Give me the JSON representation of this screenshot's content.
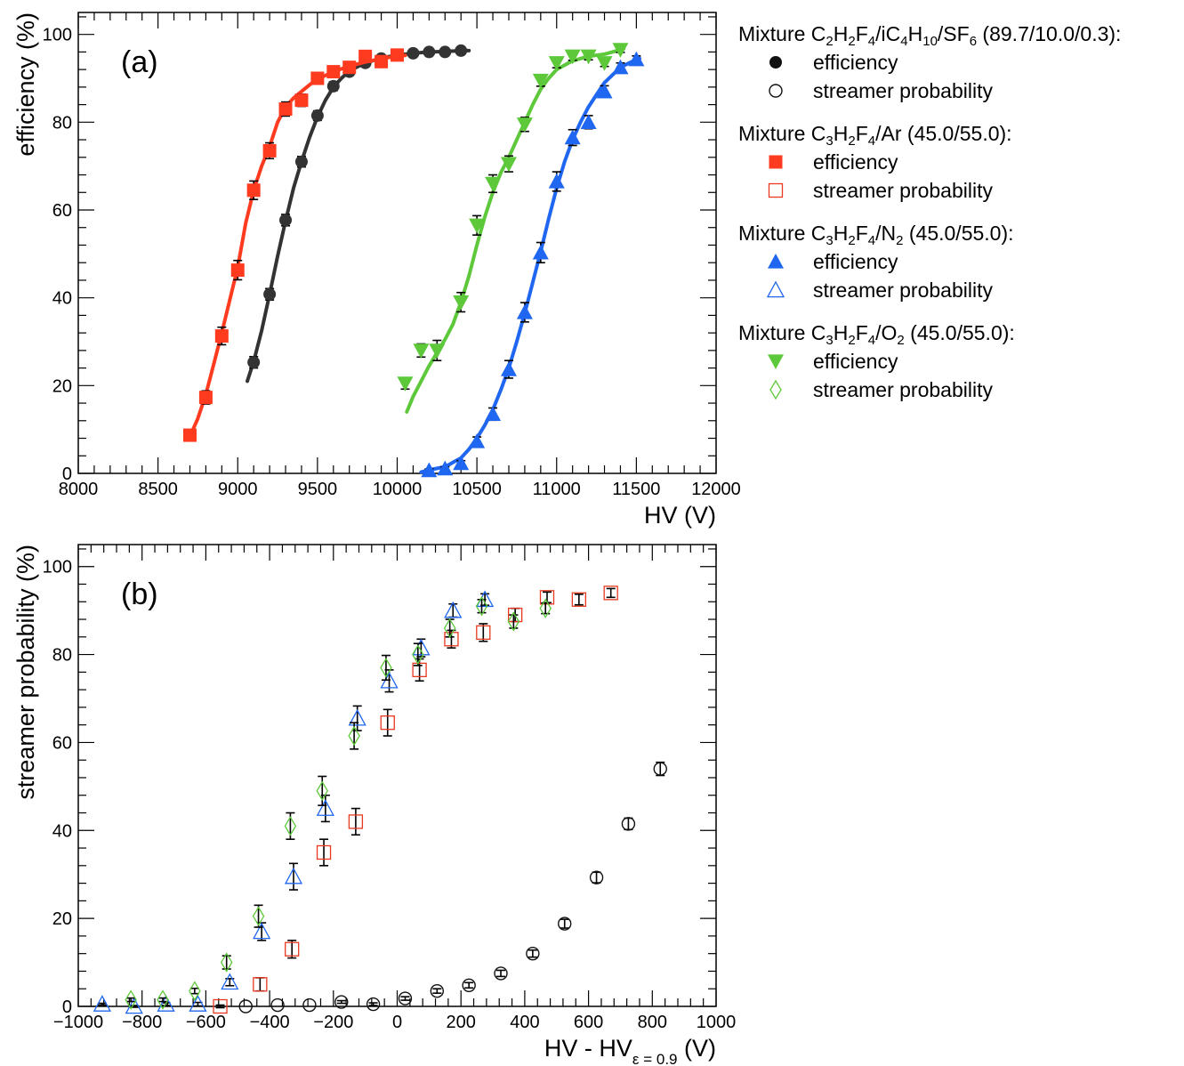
{
  "chart_data": [
    {
      "type": "scatter",
      "panel_label": "(a)",
      "xlabel": "HV (V)",
      "ylabel": "efficiency (%)",
      "xlim": [
        8000,
        12000
      ],
      "ylim": [
        0,
        105
      ],
      "xticks": [
        8000,
        8500,
        9000,
        9500,
        10000,
        10500,
        11000,
        11500,
        12000
      ],
      "yticks": [
        0,
        20,
        40,
        60,
        80,
        100
      ],
      "series": [
        {
          "name": "C2H2F4/iC4H10/SF6 efficiency",
          "color": "#333333",
          "marker": "circle-filled",
          "x": [
            9100,
            9200,
            9300,
            9400,
            9500,
            9600,
            9700,
            9800,
            9900,
            10000,
            10100,
            10200,
            10300,
            10400
          ],
          "y": [
            25.3,
            40.8,
            57.7,
            71,
            81.5,
            88.2,
            91.5,
            93.5,
            94.5,
            95.3,
            95.7,
            96,
            96,
            96.3
          ],
          "err": [
            1.3,
            1.3,
            1.3,
            1.2,
            1.1,
            1.0,
            0.9,
            0.8,
            0.7,
            0.6,
            0.6,
            0.5,
            0.5,
            0.5
          ],
          "fit": [
            [
              9060,
              21
            ],
            [
              9100,
              25.5
            ],
            [
              9150,
              32.5
            ],
            [
              9200,
              40.8
            ],
            [
              9250,
              49.5
            ],
            [
              9300,
              57.5
            ],
            [
              9350,
              65
            ],
            [
              9400,
              71
            ],
            [
              9450,
              76.5
            ],
            [
              9500,
              81.2
            ],
            [
              9550,
              85
            ],
            [
              9600,
              88
            ],
            [
              9650,
              90
            ],
            [
              9700,
              91.7
            ],
            [
              9800,
              93.5
            ],
            [
              9900,
              94.6
            ],
            [
              10000,
              95.3
            ],
            [
              10100,
              95.7
            ],
            [
              10200,
              96
            ],
            [
              10300,
              96.1
            ],
            [
              10400,
              96.3
            ],
            [
              10450,
              96.3
            ]
          ]
        },
        {
          "name": "C3H2F4/Ar efficiency",
          "color": "#ff3b1f",
          "marker": "square-filled",
          "x": [
            8700,
            8800,
            8900,
            9000,
            9100,
            9200,
            9300,
            9400,
            9500,
            9600,
            9700,
            9800,
            9900,
            10000
          ],
          "y": [
            8.7,
            17.3,
            31.3,
            46.3,
            64.5,
            73.5,
            83,
            85,
            90,
            91.5,
            92.5,
            95,
            93.8,
            95.3
          ],
          "err": [
            1.2,
            1.5,
            2.0,
            2.2,
            2.1,
            1.8,
            1.6,
            1.4,
            1.2,
            1.0,
            0.9,
            0.8,
            0.7,
            0.6
          ],
          "fit": [
            [
              8695,
              8
            ],
            [
              8750,
              12.5
            ],
            [
              8800,
              18
            ],
            [
              8850,
              25
            ],
            [
              8900,
              32
            ],
            [
              8950,
              39.5
            ],
            [
              9000,
              47
            ],
            [
              9050,
              57
            ],
            [
              9100,
              64.5
            ],
            [
              9150,
              70
            ],
            [
              9200,
              74.5
            ],
            [
              9250,
              80
            ],
            [
              9300,
              83.5
            ],
            [
              9350,
              85.5
            ],
            [
              9400,
              87
            ],
            [
              9450,
              88.5
            ],
            [
              9500,
              89.8
            ],
            [
              9600,
              91.5
            ],
            [
              9700,
              92.8
            ],
            [
              9800,
              93.7
            ],
            [
              9900,
              94.5
            ],
            [
              10000,
              95
            ],
            [
              10050,
              95.2
            ]
          ]
        },
        {
          "name": "C3H2F4/N2 efficiency",
          "color": "#1f66f0",
          "marker": "triangle-up-filled",
          "x": [
            10200,
            10300,
            10400,
            10500,
            10600,
            10700,
            10800,
            10900,
            11000,
            11100,
            11200,
            11300,
            11400,
            11500
          ],
          "y": [
            0.7,
            1.1,
            2.3,
            7.3,
            13.5,
            23.7,
            36.7,
            50.3,
            66.5,
            76.5,
            80,
            87,
            92.5,
            94.3
          ],
          "err": [
            0.3,
            0.4,
            0.6,
            1.0,
            1.4,
            2.0,
            2.2,
            2.3,
            2.2,
            1.8,
            1.5,
            1.3,
            1.0,
            0.8
          ],
          "fit": [
            [
              10150,
              0.3
            ],
            [
              10200,
              0.8
            ],
            [
              10300,
              1.5
            ],
            [
              10400,
              3.5
            ],
            [
              10450,
              5.5
            ],
            [
              10500,
              8
            ],
            [
              10550,
              11
            ],
            [
              10600,
              14.5
            ],
            [
              10650,
              19
            ],
            [
              10700,
              24
            ],
            [
              10750,
              30
            ],
            [
              10800,
              36.5
            ],
            [
              10850,
              43.5
            ],
            [
              10900,
              50.5
            ],
            [
              10950,
              58
            ],
            [
              11000,
              65
            ],
            [
              11050,
              71
            ],
            [
              11100,
              76
            ],
            [
              11150,
              80
            ],
            [
              11200,
              83.5
            ],
            [
              11300,
              89
            ],
            [
              11400,
              92.5
            ],
            [
              11500,
              94.3
            ],
            [
              11520,
              94.5
            ]
          ]
        },
        {
          "name": "C3H2F4/O2 efficiency",
          "color": "#5dc93a",
          "marker": "triangle-down-filled",
          "x": [
            10050,
            10150,
            10250,
            10400,
            10500,
            10600,
            10700,
            10800,
            10900,
            11000,
            11100,
            11200,
            11300,
            11400
          ],
          "y": [
            20.5,
            28,
            28,
            39,
            56.5,
            66,
            70.5,
            79.5,
            89.5,
            93.5,
            95,
            95,
            93.5,
            96.5
          ],
          "err": [
            1.3,
            1.5,
            2.3,
            2.2,
            2.2,
            2.0,
            1.8,
            1.6,
            1.3,
            1.1,
            0.9,
            0.8,
            0.8,
            0.6
          ],
          "fit": [
            [
              10060,
              14
            ],
            [
              10100,
              17.5
            ],
            [
              10150,
              21
            ],
            [
              10200,
              24.5
            ],
            [
              10250,
              27.5
            ],
            [
              10300,
              30.5
            ],
            [
              10350,
              34
            ],
            [
              10400,
              39
            ],
            [
              10450,
              45
            ],
            [
              10500,
              52
            ],
            [
              10550,
              58.5
            ],
            [
              10600,
              64
            ],
            [
              10650,
              68.5
            ],
            [
              10700,
              72
            ],
            [
              10750,
              76
            ],
            [
              10800,
              80
            ],
            [
              10850,
              84
            ],
            [
              10900,
              87.5
            ],
            [
              10950,
              90
            ],
            [
              11000,
              92
            ],
            [
              11100,
              94
            ],
            [
              11200,
              95
            ],
            [
              11300,
              95.5
            ],
            [
              11400,
              96.5
            ],
            [
              11420,
              96.7
            ]
          ]
        }
      ]
    },
    {
      "type": "scatter",
      "panel_label": "(b)",
      "xlabel": "HV - HV",
      "xlabel_sub": "ε = 0.9",
      "xlabel_unit": " (V)",
      "ylabel": "streamer probability (%)",
      "xlim": [
        -1000,
        1000
      ],
      "ylim": [
        0,
        105
      ],
      "xticks": [
        -1000,
        -800,
        -600,
        -400,
        -200,
        0,
        200,
        400,
        600,
        800,
        1000
      ],
      "xtick_labels": [
        "−1000",
        "−800",
        "−600",
        "−400",
        "−200",
        "0",
        "200",
        "400",
        "600",
        "800",
        "1000"
      ],
      "yticks": [
        0,
        20,
        40,
        60,
        80,
        100
      ],
      "series": [
        {
          "name": "C2H2F4/iC4H10/SF6 streamer probability",
          "color": "#111111",
          "marker": "circle-open",
          "x": [
            -475,
            -375,
            -275,
            -175,
            -75,
            25,
            125,
            225,
            325,
            425,
            525,
            625,
            725,
            825
          ],
          "y": [
            0,
            0.3,
            0.3,
            1,
            0.5,
            1.8,
            3.5,
            4.8,
            7.5,
            12,
            18.8,
            29.3,
            41.5,
            54
          ],
          "err": [
            0,
            0,
            0,
            0.3,
            0.3,
            0.4,
            0.5,
            0.6,
            0.7,
            0.8,
            1.0,
            1.2,
            1.3,
            1.5
          ]
        },
        {
          "name": "C3H2F4/Ar streamer probability",
          "color": "#e8381f",
          "marker": "square-open",
          "x": [
            -555,
            -430,
            -330,
            -230,
            -130,
            -30,
            70,
            170,
            270,
            370,
            470,
            570,
            670
          ],
          "y": [
            0,
            5,
            13,
            35,
            42,
            64.5,
            76.5,
            83.5,
            85,
            89,
            93,
            92.5,
            94
          ],
          "err": [
            0.3,
            1.5,
            2.0,
            3.0,
            3.0,
            3.0,
            2.5,
            2.0,
            2.0,
            1.5,
            1.2,
            1.2,
            1.0
          ]
        },
        {
          "name": "C3H2F4/N2 streamer probability",
          "color": "#1f66f0",
          "marker": "triangle-up-open",
          "x": [
            -925,
            -825,
            -725,
            -625,
            -525,
            -425,
            -325,
            -225,
            -125,
            -25,
            75,
            175,
            275
          ],
          "y": [
            0.5,
            0,
            0.5,
            0.5,
            5.5,
            17,
            29.5,
            45,
            65.5,
            74,
            81.5,
            90,
            92.5
          ],
          "err": [
            0.2,
            0.2,
            0.3,
            0.4,
            0.8,
            2.0,
            3.0,
            3.0,
            2.8,
            2.5,
            2.0,
            1.5,
            1.3
          ]
        },
        {
          "name": "C3H2F4/O2 streamer probability",
          "color": "#5dc93a",
          "marker": "diamond-open",
          "x": [
            -835,
            -735,
            -635,
            -535,
            -435,
            -335,
            -235,
            -135,
            -35,
            65,
            165,
            265,
            365,
            465
          ],
          "y": [
            1.5,
            1.5,
            3.5,
            10,
            20.5,
            41,
            49,
            61.5,
            77,
            80,
            86,
            91,
            87.5,
            90.5
          ],
          "err": [
            0.4,
            0.4,
            0.6,
            1.5,
            2.5,
            3.0,
            3.3,
            3.0,
            2.8,
            2.5,
            2.0,
            1.5,
            1.5,
            1.2
          ]
        }
      ]
    }
  ],
  "legend": {
    "groups": [
      {
        "title_prefix": "Mixture ",
        "formula": [
          [
            "C",
            ""
          ],
          [
            "2",
            "sub"
          ],
          [
            "H",
            ""
          ],
          [
            "2",
            "sub"
          ],
          [
            "F",
            ""
          ],
          [
            "4",
            "sub"
          ],
          [
            "/iC",
            ""
          ],
          [
            "4",
            "sub"
          ],
          [
            "H",
            ""
          ],
          [
            "10",
            "sub"
          ],
          [
            "/SF",
            ""
          ],
          [
            "6",
            "sub"
          ]
        ],
        "title_suffix": " (89.7/10.0/0.3):",
        "entries": [
          {
            "label": "efficiency",
            "marker": "circle-filled",
            "color": "#111111"
          },
          {
            "label": "streamer probability",
            "marker": "circle-open",
            "color": "#111111"
          }
        ]
      },
      {
        "title_prefix": "Mixture ",
        "formula": [
          [
            "C",
            ""
          ],
          [
            "3",
            "sub"
          ],
          [
            "H",
            ""
          ],
          [
            "2",
            "sub"
          ],
          [
            "F",
            ""
          ],
          [
            "4",
            "sub"
          ],
          [
            "/Ar",
            ""
          ]
        ],
        "title_suffix": " (45.0/55.0):",
        "entries": [
          {
            "label": "efficiency",
            "marker": "square-filled",
            "color": "#ff3b1f"
          },
          {
            "label": "streamer probability",
            "marker": "square-open",
            "color": "#e8381f"
          }
        ]
      },
      {
        "title_prefix": "Mixture ",
        "formula": [
          [
            "C",
            ""
          ],
          [
            "3",
            "sub"
          ],
          [
            "H",
            ""
          ],
          [
            "2",
            "sub"
          ],
          [
            "F",
            ""
          ],
          [
            "4",
            "sub"
          ],
          [
            "/N",
            ""
          ],
          [
            "2",
            "sub"
          ]
        ],
        "title_suffix": " (45.0/55.0):",
        "entries": [
          {
            "label": "efficiency",
            "marker": "triangle-up-filled",
            "color": "#1f66f0"
          },
          {
            "label": "streamer probability",
            "marker": "triangle-up-open",
            "color": "#1f66f0"
          }
        ]
      },
      {
        "title_prefix": "Mixture ",
        "formula": [
          [
            "C",
            ""
          ],
          [
            "3",
            "sub"
          ],
          [
            "H",
            ""
          ],
          [
            "2",
            "sub"
          ],
          [
            "F",
            ""
          ],
          [
            "4",
            "sub"
          ],
          [
            "/O",
            ""
          ],
          [
            "2",
            "sub"
          ]
        ],
        "title_suffix": " (45.0/55.0):",
        "entries": [
          {
            "label": "efficiency",
            "marker": "triangle-down-filled",
            "color": "#5dc93a"
          },
          {
            "label": "streamer probability",
            "marker": "diamond-open",
            "color": "#5dc93a"
          }
        ]
      }
    ]
  }
}
